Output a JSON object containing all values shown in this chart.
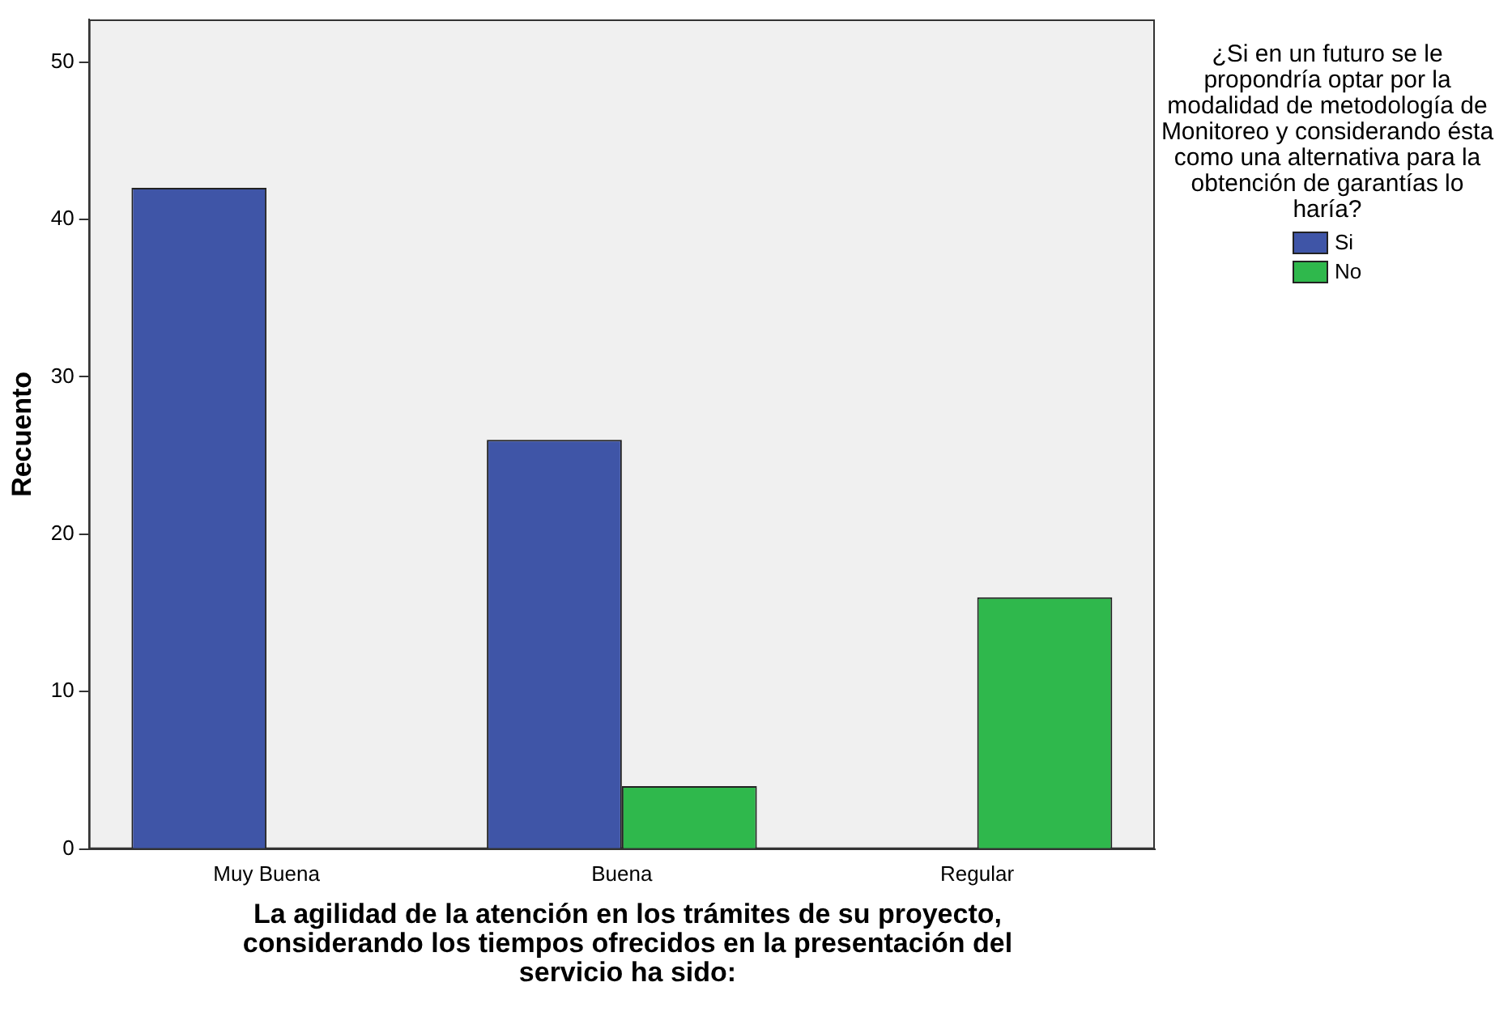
{
  "chart_data": {
    "type": "bar",
    "xlabel": "La agilidad de la atención en los trámites de su proyecto, considerando los tiempos ofrecidos en la presentación del servicio ha sido:",
    "ylabel": "Recuento",
    "legend_title": "¿Si en un futuro se le propondría optar por la modalidad de metodología  de Monitoreo y considerando ésta como una alternativa para la obtención de garantías lo haría?",
    "categories": [
      "Muy Buena",
      "Buena",
      "Regular"
    ],
    "series": [
      {
        "name": "Si",
        "color": "#3f55a7",
        "values": [
          42,
          26,
          null
        ]
      },
      {
        "name": "No",
        "color": "#2fb84c",
        "values": [
          null,
          4,
          16
        ]
      }
    ],
    "ylim": [
      0,
      52.7
    ],
    "yticks": [
      0,
      10,
      20,
      30,
      40,
      50
    ],
    "grid": false,
    "legend": "right"
  }
}
